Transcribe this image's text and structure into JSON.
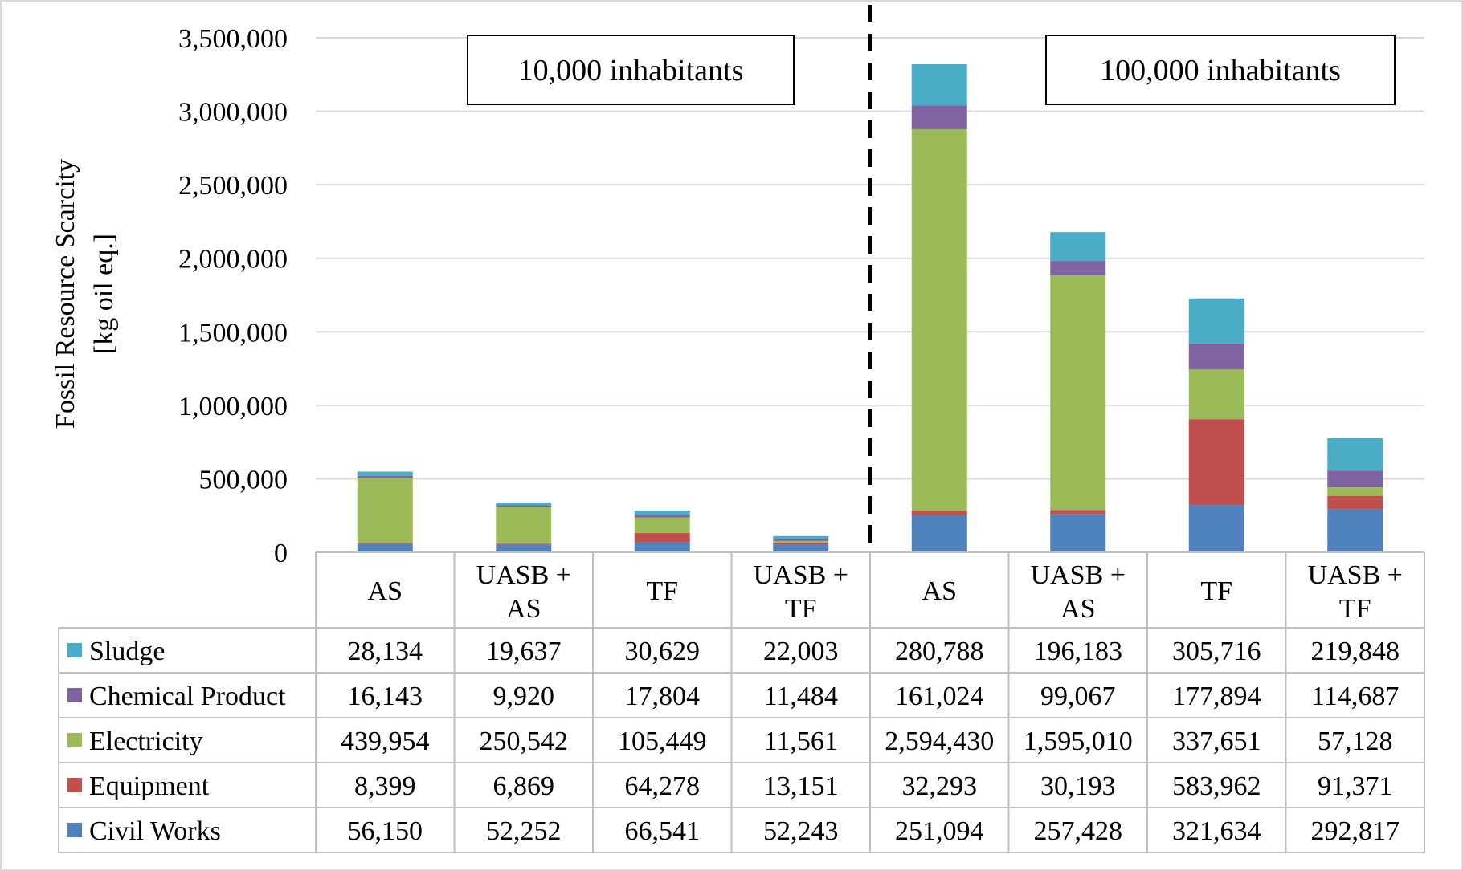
{
  "chart_data": {
    "type": "bar",
    "stacked": true,
    "ylabel_line1": "Fossil Resource Scarcity",
    "ylabel_line2": "[kg oil eq.]",
    "ylim": [
      0,
      3500000
    ],
    "yticks": [
      "0",
      "500,000",
      "1,000,000",
      "1,500,000",
      "2,000,000",
      "2,500,000",
      "3,000,000",
      "3,500,000"
    ],
    "ytick_values": [
      0,
      500000,
      1000000,
      1500000,
      2000000,
      2500000,
      3000000,
      3500000
    ],
    "grid": true,
    "groups": [
      {
        "label": "10,000 inhabitants",
        "start": 0,
        "end": 3
      },
      {
        "label": "100,000 inhabitants",
        "start": 4,
        "end": 7
      }
    ],
    "categories": [
      {
        "line1": "AS",
        "line2": ""
      },
      {
        "line1": "UASB +",
        "line2": "AS"
      },
      {
        "line1": "TF",
        "line2": ""
      },
      {
        "line1": "UASB +",
        "line2": "TF"
      },
      {
        "line1": "AS",
        "line2": ""
      },
      {
        "line1": "UASB +",
        "line2": "AS"
      },
      {
        "line1": "TF",
        "line2": ""
      },
      {
        "line1": "UASB +",
        "line2": "TF"
      }
    ],
    "series": [
      {
        "name": "Civil Works",
        "color": "#4f81bd",
        "values": [
          56150,
          52252,
          66541,
          52243,
          251094,
          257428,
          321634,
          292817
        ],
        "labels": [
          "56,150",
          "52,252",
          "66,541",
          "52,243",
          "251,094",
          "257,428",
          "321,634",
          "292,817"
        ]
      },
      {
        "name": "Equipment",
        "color": "#c0504d",
        "values": [
          8399,
          6869,
          64278,
          13151,
          32293,
          30193,
          583962,
          91371
        ],
        "labels": [
          "8,399",
          "6,869",
          "64,278",
          "13,151",
          "32,293",
          "30,193",
          "583,962",
          "91,371"
        ]
      },
      {
        "name": "Electricity",
        "color": "#9bbb59",
        "values": [
          439954,
          250542,
          105449,
          11561,
          2594430,
          1595010,
          337651,
          57128
        ],
        "labels": [
          "439,954",
          "250,542",
          "105,449",
          "11,561",
          "2,594,430",
          "1,595,010",
          "337,651",
          "57,128"
        ]
      },
      {
        "name": "Chemical Product",
        "color": "#8064a2",
        "values": [
          16143,
          9920,
          17804,
          11484,
          161024,
          99067,
          177894,
          114687
        ],
        "labels": [
          "16,143",
          "9,920",
          "17,804",
          "11,484",
          "161,024",
          "99,067",
          "177,894",
          "114,687"
        ]
      },
      {
        "name": "Sludge",
        "color": "#4bacc6",
        "values": [
          28134,
          19637,
          30629,
          22003,
          280788,
          196183,
          305716,
          219848
        ],
        "labels": [
          "28,134",
          "19,637",
          "30,629",
          "22,003",
          "280,788",
          "196,183",
          "305,716",
          "219,848"
        ]
      }
    ],
    "table_row_order": [
      "Sludge",
      "Chemical Product",
      "Electricity",
      "Equipment",
      "Civil Works"
    ],
    "legend_placement": "data-table-left"
  }
}
